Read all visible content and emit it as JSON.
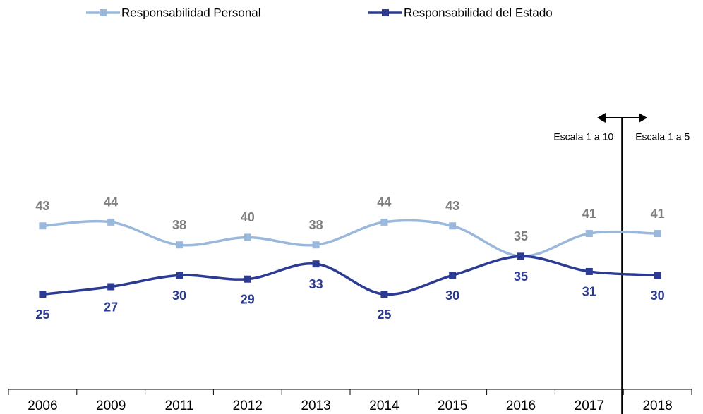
{
  "chart_data": {
    "type": "line",
    "categories": [
      "2006",
      "2009",
      "2011",
      "2012",
      "2013",
      "2014",
      "2015",
      "2016",
      "2017",
      "2018"
    ],
    "series": [
      {
        "name": "Responsabilidad Personal",
        "color": "#9ab8db",
        "label_color": "#7f7f7f",
        "values": [
          43,
          44,
          38,
          40,
          38,
          44,
          43,
          35,
          41,
          41
        ]
      },
      {
        "name": "Responsabilidad del Estado",
        "color": "#2b3a93",
        "label_color": "#2b3a93",
        "values": [
          25,
          27,
          30,
          29,
          33,
          25,
          30,
          35,
          31,
          30
        ]
      }
    ],
    "ylim": [
      0,
      90
    ],
    "annotations": [
      "Escala 1 a 10",
      "Escala 1 a 5"
    ],
    "legend": "top"
  }
}
